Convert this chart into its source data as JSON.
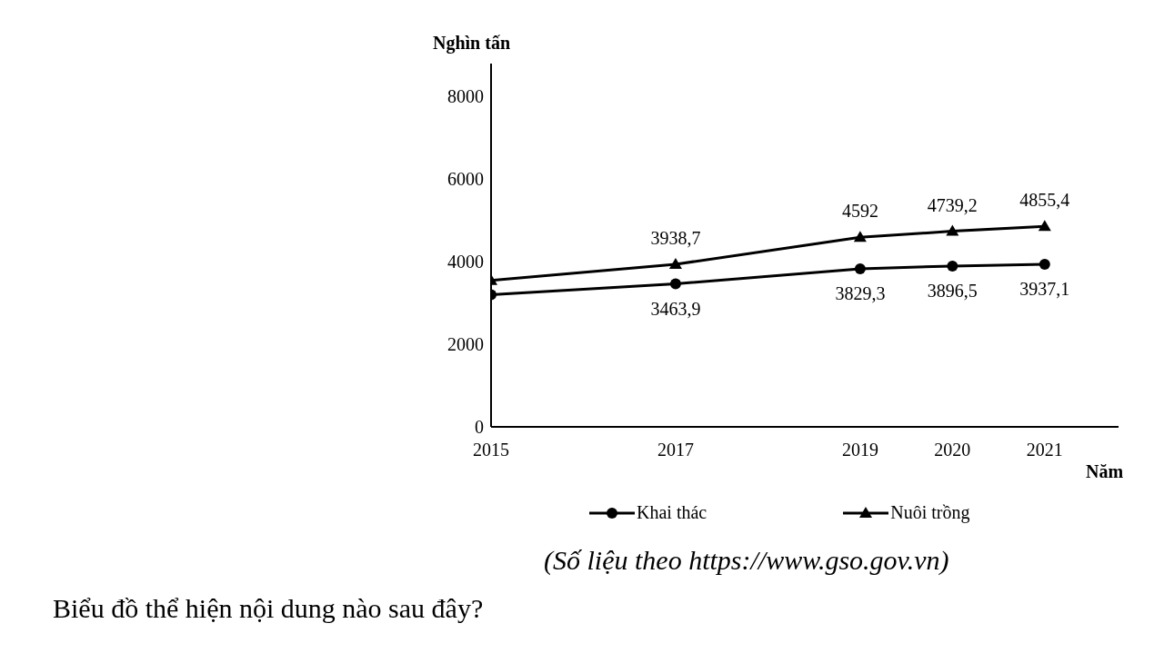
{
  "chart_data": {
    "type": "line",
    "ylabel": "Nghìn tấn",
    "xlabel": "Năm",
    "x": [
      2015,
      2017,
      2019,
      2020,
      2021
    ],
    "xlim": [
      2015,
      2021.8
    ],
    "xticks": [
      2015,
      2017,
      2019,
      2020,
      2021
    ],
    "ylim": [
      0,
      8800
    ],
    "yticks": [
      0,
      2000,
      4000,
      6000,
      8000
    ],
    "grid": false,
    "legend": "bottom",
    "series": [
      {
        "name": "Khai thác",
        "color": "#000000",
        "marker": "circle",
        "values": [
          3200,
          3463.9,
          3829.3,
          3896.5,
          3937.1
        ],
        "value_labels": [
          null,
          "3463,9",
          "3829,3",
          "3896,5",
          "3937,1"
        ]
      },
      {
        "name": "Nuôi trồng",
        "color": "#000000",
        "marker": "triangle",
        "values": [
          3550,
          3938.7,
          4592,
          4739.2,
          4855.4
        ],
        "value_labels": [
          null,
          "3938,7",
          "4592",
          "4739,2",
          "4855,4"
        ]
      }
    ],
    "annotations": [
      "(Số liệu theo https://www.gso.gov.vn)",
      "Biểu đồ thể hiện nội dung nào sau đây?"
    ]
  }
}
